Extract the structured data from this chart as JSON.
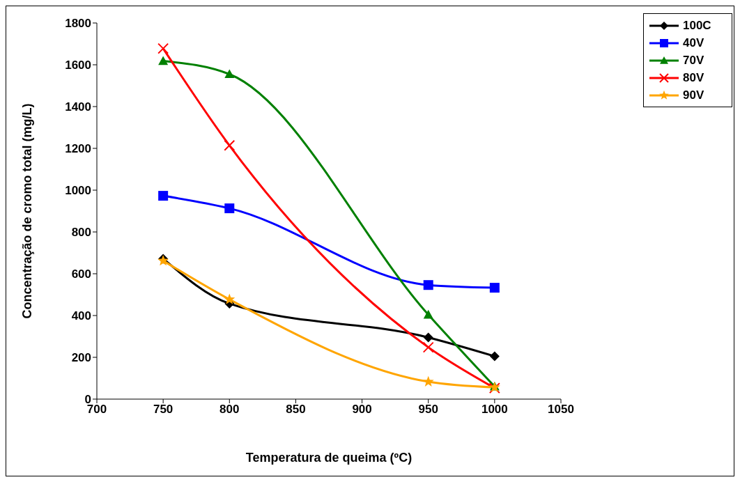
{
  "chart_data": {
    "type": "line",
    "xlabel": "Temperatura de queima (ºC)",
    "ylabel": "Concentração de cromo total (mg/L)",
    "x": [
      750,
      800,
      950,
      1000
    ],
    "xlim": [
      700,
      1050
    ],
    "xticks": [
      700,
      750,
      800,
      850,
      900,
      950,
      1000,
      1050
    ],
    "ylim": [
      0,
      1800
    ],
    "yticks": [
      0,
      200,
      400,
      600,
      800,
      1000,
      1200,
      1400,
      1600,
      1800
    ],
    "grid": false,
    "legend": "top right",
    "series": [
      {
        "name": "100C",
        "color": "#000000",
        "marker": "diamond",
        "values": [
          672,
          457,
          295,
          205
        ]
      },
      {
        "name": "40V",
        "color": "#0000ff",
        "marker": "square",
        "values": [
          973,
          913,
          546,
          533
        ]
      },
      {
        "name": "70V",
        "color": "#008000",
        "marker": "triangle",
        "values": [
          1618,
          1555,
          404,
          60
        ]
      },
      {
        "name": "80V",
        "color": "#ff0000",
        "marker": "cross",
        "values": [
          1678,
          1214,
          248,
          53
        ]
      },
      {
        "name": "90V",
        "color": "#ffa500",
        "marker": "star",
        "values": [
          662,
          477,
          83,
          56
        ]
      }
    ]
  }
}
